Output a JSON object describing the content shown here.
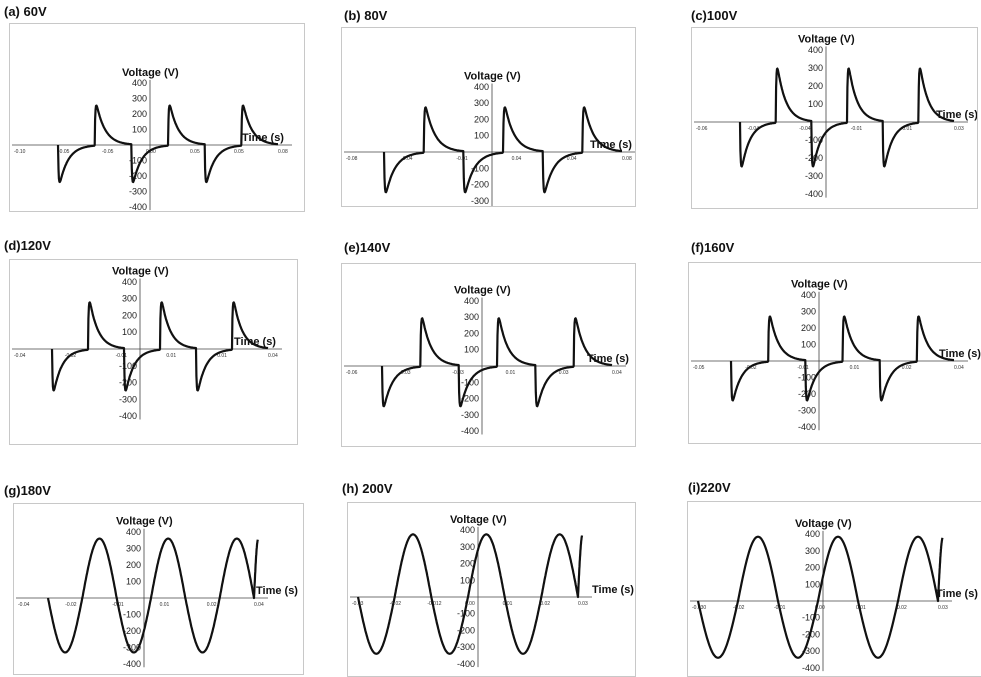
{
  "chart_data": [
    {
      "id": "a",
      "panel_label": "(a) 60V",
      "type": "line",
      "ylabel": "Voltage (V)",
      "xlabel": "Time (s)",
      "ylim": [
        -400,
        400
      ],
      "yticks": [
        "400",
        "300",
        "200",
        "100",
        "-100",
        "-200",
        "-300",
        "-400"
      ],
      "xticks": [
        "-0.10",
        "-0.05",
        "-0.05",
        "0.00",
        "0.05",
        "0.05",
        "0.08"
      ],
      "series": [
        {
          "waveform": "pulsed",
          "peak_positive": 330,
          "peak_negative": -310,
          "cycles": 3,
          "final_rise": false
        }
      ]
    },
    {
      "id": "b",
      "panel_label": "(b) 80V",
      "type": "line",
      "ylabel": "Voltage (V)",
      "xlabel": "Time (s)",
      "ylim": [
        -400,
        400
      ],
      "yticks": [
        "400",
        "300",
        "200",
        "100",
        "-100",
        "-200",
        "-300",
        "-400"
      ],
      "xticks": [
        "-0.08",
        "-0.04",
        "-0.01",
        "0.04",
        "0.04",
        "0.08"
      ],
      "series": [
        {
          "waveform": "pulsed",
          "peak_positive": 355,
          "peak_negative": -320,
          "cycles": 3,
          "final_rise": false
        }
      ]
    },
    {
      "id": "c",
      "panel_label": "(c)100V",
      "type": "line",
      "ylabel": "Voltage (V)",
      "xlabel": "Time (s)",
      "ylim": [
        -400,
        400
      ],
      "yticks": [
        "400",
        "300",
        "200",
        "100",
        "-100",
        "-200",
        "-300",
        "-400"
      ],
      "xticks": [
        "-0.06",
        "-0.04",
        "-0.04",
        "-0.01",
        "0.01",
        "0.03"
      ],
      "series": [
        {
          "waveform": "pulsed",
          "peak_positive": 385,
          "peak_negative": -320,
          "cycles": 3,
          "final_rise": false
        }
      ]
    },
    {
      "id": "d",
      "panel_label": "(d)120V",
      "type": "line",
      "ylabel": "Voltage (V)",
      "xlabel": "Time (s)",
      "ylim": [
        -400,
        400
      ],
      "yticks": [
        "400",
        "300",
        "200",
        "100",
        "-100",
        "-200",
        "-300",
        "-400"
      ],
      "xticks": [
        "-0.04",
        "-0.02",
        "-0.01",
        "0.01",
        "0.01",
        "0.04"
      ],
      "series": [
        {
          "waveform": "pulsed",
          "peak_positive": 360,
          "peak_negative": -320,
          "cycles": 3,
          "final_rise": false
        }
      ]
    },
    {
      "id": "e",
      "panel_label": "(e)140V",
      "type": "line",
      "ylabel": "Voltage (V)",
      "xlabel": "Time (s)",
      "ylim": [
        -400,
        400
      ],
      "yticks": [
        "400",
        "300",
        "200",
        "100",
        "-100",
        "-200",
        "-300",
        "-400"
      ],
      "xticks": [
        "-0.06",
        "-0.03",
        "-0.03",
        "0.01",
        "0.03",
        "0.04"
      ],
      "series": [
        {
          "waveform": "pulsed",
          "peak_positive": 380,
          "peak_negative": -320,
          "cycles": 3,
          "final_rise": false
        }
      ]
    },
    {
      "id": "f",
      "panel_label": "(f)160V",
      "type": "line",
      "ylabel": "Voltage (V)",
      "xlabel": "Time (s)",
      "ylim": [
        -400,
        400
      ],
      "yticks": [
        "400",
        "300",
        "200",
        "100",
        "-100",
        "-200",
        "-300",
        "-400"
      ],
      "xticks": [
        "-0.05",
        "-0.02",
        "-0.01",
        "0.01",
        "0.02",
        "0.04"
      ],
      "series": [
        {
          "waveform": "pulsed",
          "peak_positive": 350,
          "peak_negative": -310,
          "cycles": 3,
          "final_rise": false
        }
      ]
    },
    {
      "id": "g",
      "panel_label": "(g)180V",
      "type": "line",
      "ylabel": "Voltage (V)",
      "xlabel": "Time (s)",
      "ylim": [
        -400,
        400
      ],
      "yticks": [
        "400",
        "300",
        "200",
        "100",
        "-100",
        "-200",
        "-300",
        "-400"
      ],
      "xticks": [
        "-0.04",
        "-0.02",
        "-0.01",
        "0.01",
        "0.02",
        "0.04"
      ],
      "series": [
        {
          "waveform": "sine",
          "peak_positive": 360,
          "peak_negative": -330,
          "cycles": 3,
          "final_rise": true
        }
      ]
    },
    {
      "id": "h",
      "panel_label": "(h) 200V",
      "type": "line",
      "ylabel": "Voltage (V)",
      "xlabel": "Time (s)",
      "ylim": [
        -400,
        400
      ],
      "yticks": [
        "400",
        "300",
        "200",
        "100",
        "-100",
        "-200",
        "-300",
        "-400"
      ],
      "xticks": [
        "-0.03",
        "-0.02",
        "-0.012",
        "0.00",
        "0.01",
        "0.02",
        "0.03"
      ],
      "series": [
        {
          "waveform": "sine",
          "peak_positive": 375,
          "peak_negative": -340,
          "cycles": 3,
          "final_rise": true
        }
      ]
    },
    {
      "id": "i",
      "panel_label": "(i)220V",
      "type": "line",
      "ylabel": "Voltage (V)",
      "xlabel": "Time (s)",
      "ylim": [
        -400,
        400
      ],
      "yticks": [
        "400",
        "300",
        "200",
        "100",
        "-100",
        "-200",
        "-300",
        "-400"
      ],
      "xticks": [
        "-0.030",
        "-0.02",
        "-0.01",
        "0.00",
        "0.01",
        "0.02",
        "0.03"
      ],
      "series": [
        {
          "waveform": "sine",
          "peak_positive": 385,
          "peak_negative": -340,
          "cycles": 3,
          "final_rise": true
        }
      ]
    }
  ]
}
